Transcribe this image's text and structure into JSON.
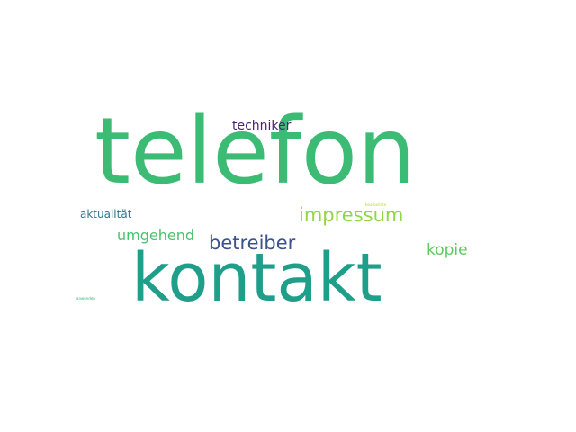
{
  "words": {
    "telefon": {
      "text": "telefon",
      "color": "#3bbb74"
    },
    "kontakt": {
      "text": "kontakt",
      "color": "#1f9e89"
    },
    "techniker": {
      "text": "techniker",
      "color": "#482475"
    },
    "impressum": {
      "text": "impressum",
      "color": "#8fd744"
    },
    "aktualitat": {
      "text": "aktualität",
      "color": "#2a788e"
    },
    "umgehend": {
      "text": "umgehend",
      "color": "#4ac16d"
    },
    "betreiber": {
      "text": "betreiber",
      "color": "#3b528b"
    },
    "kopie": {
      "text": "kopie",
      "color": "#5ec962"
    },
    "tiny1": {
      "text": "bearbeitete",
      "color": "#b5de2b"
    },
    "tiny2": {
      "text": "anwenden",
      "color": "#35b779"
    }
  }
}
